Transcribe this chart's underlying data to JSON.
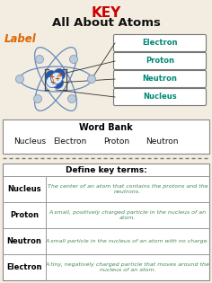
{
  "title_key": "KEY",
  "title_main": "All About Atoms",
  "label_text": "Label",
  "key_color": "#cc0000",
  "label_color": "#dd6600",
  "title_color": "#111111",
  "label_boxes": [
    "Electron",
    "Proton",
    "Neutron",
    "Nucleus"
  ],
  "label_box_color": "#008877",
  "word_bank_title": "Word Bank",
  "word_bank_words": [
    "Nucleus",
    "Electron",
    "Proton",
    "Neutron"
  ],
  "define_title": "Define key terms:",
  "define_terms": [
    "Nucleus",
    "Proton",
    "Neutron",
    "Electron"
  ],
  "define_defs": [
    "The center of an atom that contains the protons and the\nneutrons.",
    "A small, positively charged particle in the nucleus of an\natom.",
    "A small particle in the nucleus of an atom with no charge.",
    "A tiny, negatively charged particle that moves around the\nnucleus of an atom."
  ],
  "bg_color": "#f2ede0",
  "dashed_color": "#777777",
  "orbit_color": "#6688bb",
  "nucleus_blue": "#2255aa",
  "nucleus_white": "#ddeeff",
  "electron_color": "#bbccdd",
  "line_color": "#333333",
  "table_line_color": "#999999",
  "def_text_color": "#448855"
}
